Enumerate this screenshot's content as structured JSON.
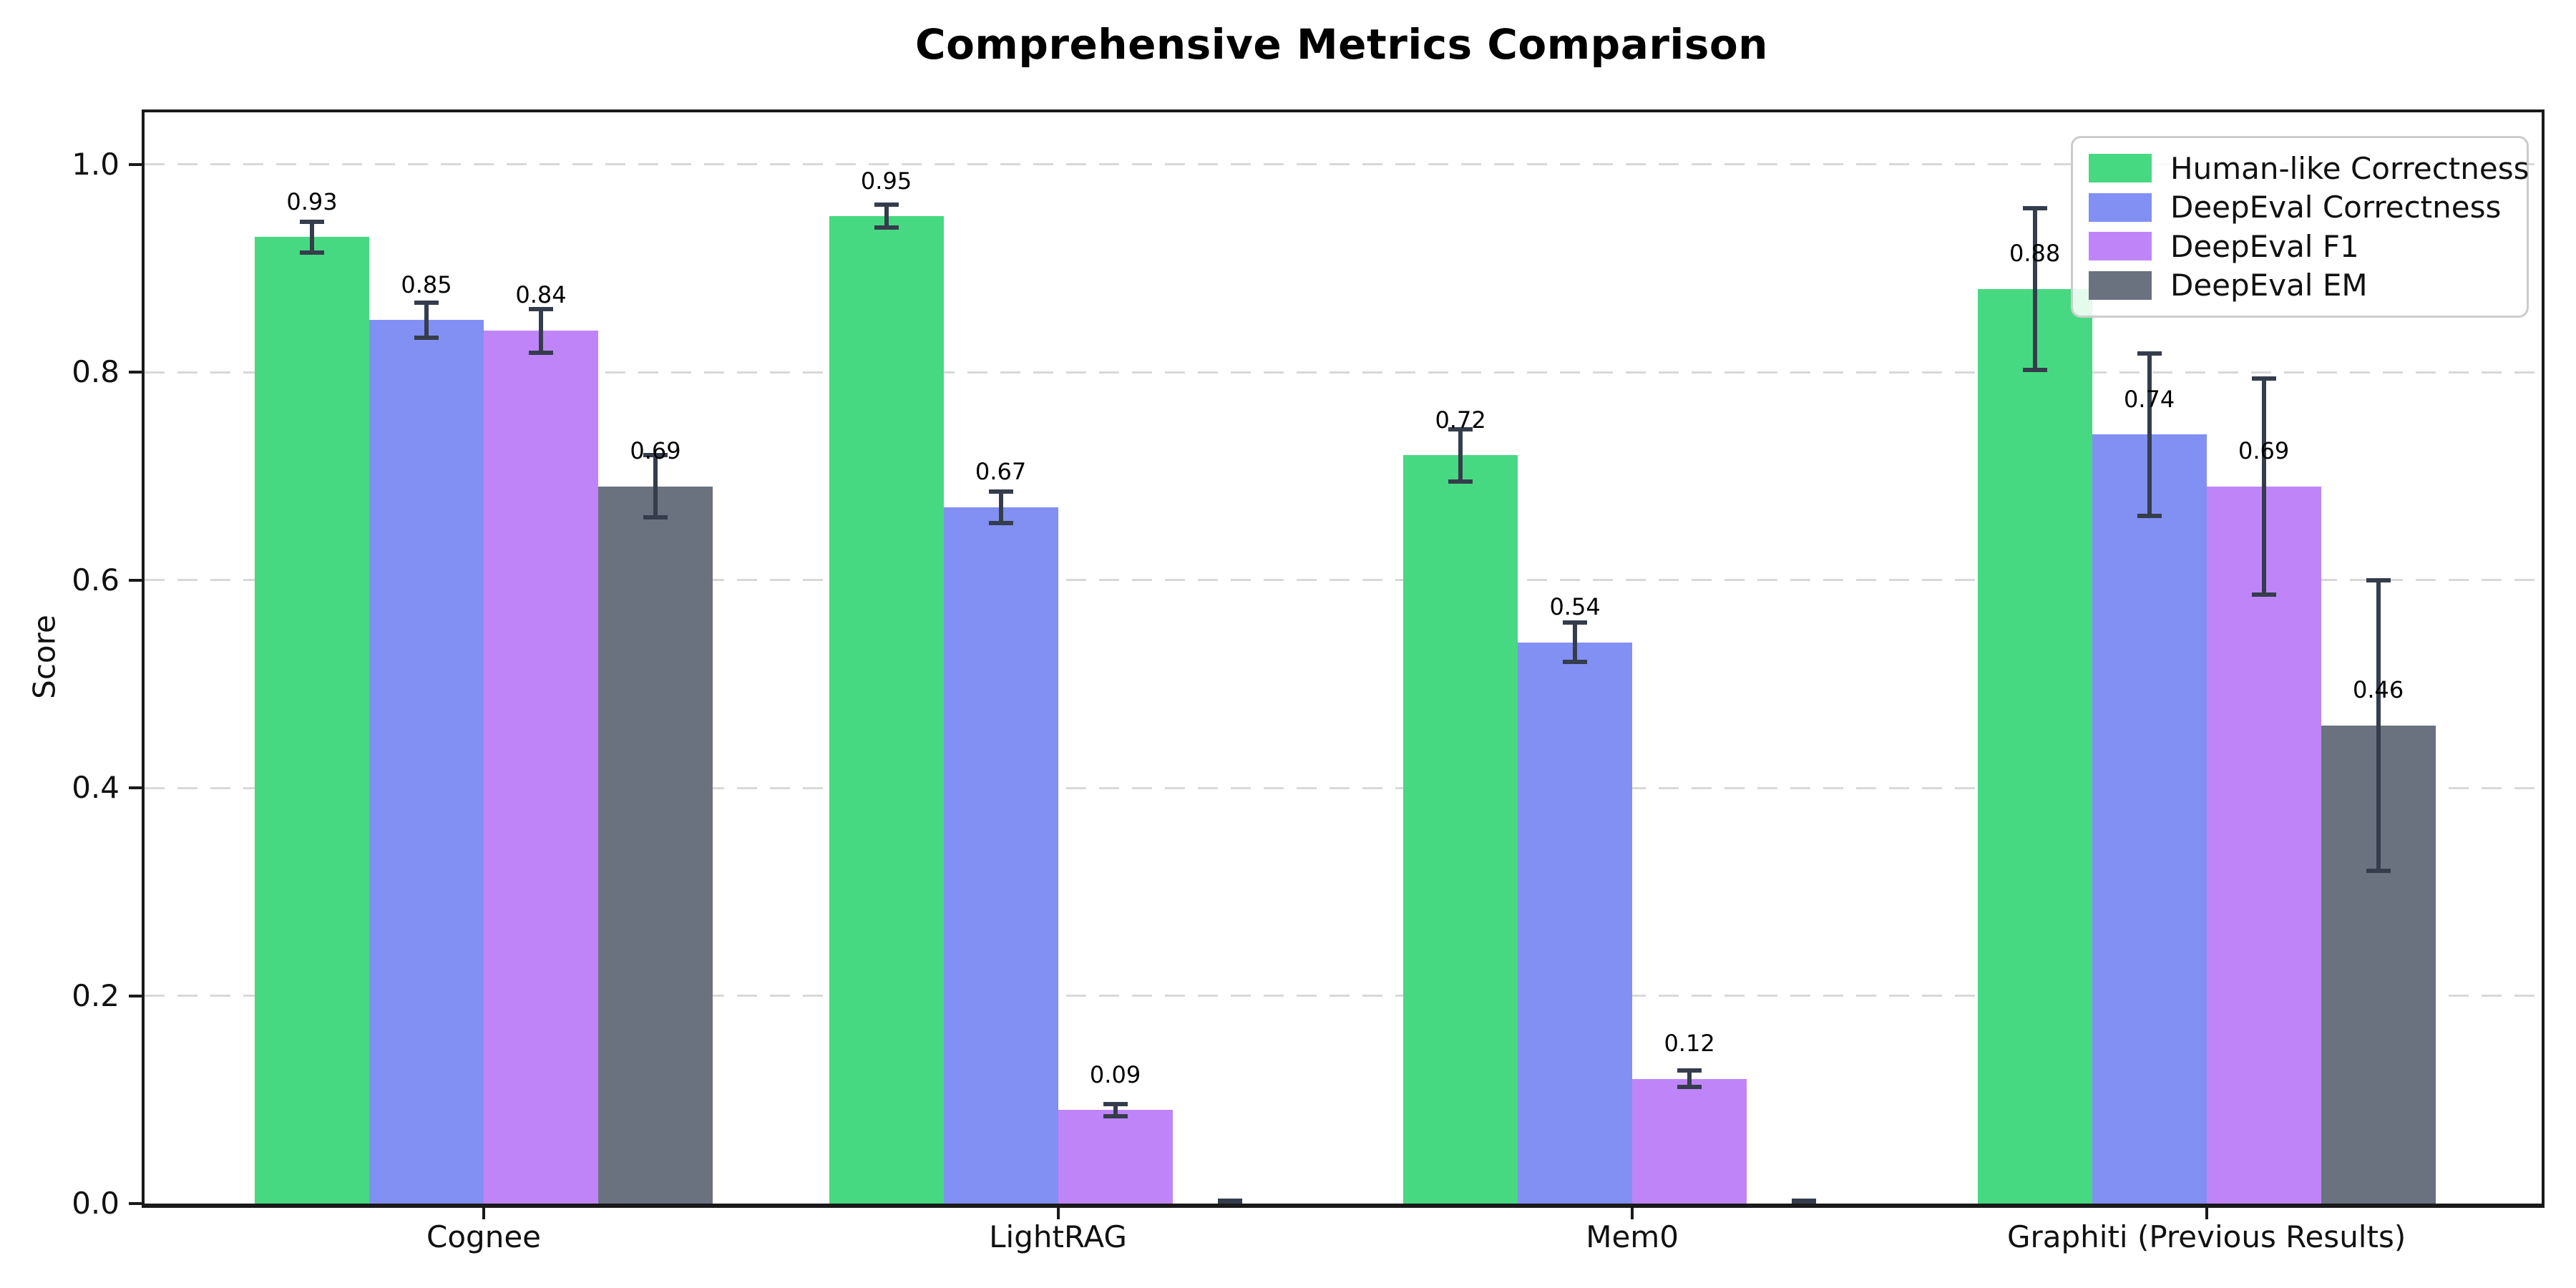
{
  "chart": {
    "title": "Comprehensive Metrics Comparison",
    "ylabel": "Score"
  },
  "chart_data": {
    "type": "bar",
    "title": "Comprehensive Metrics Comparison",
    "xlabel": "",
    "ylabel": "Score",
    "categories": [
      "Cognee",
      "LightRAG",
      "Mem0",
      "Graphiti (Previous Results)"
    ],
    "series": [
      {
        "name": "Human-like Correctness",
        "color": "#47d981",
        "values": [
          0.93,
          0.95,
          0.72,
          0.88
        ],
        "errors": [
          0.015,
          0.011,
          0.025,
          0.078
        ]
      },
      {
        "name": "DeepEval Correctness",
        "color": "#8190f2",
        "values": [
          0.85,
          0.67,
          0.54,
          0.74
        ],
        "errors": [
          0.017,
          0.015,
          0.019,
          0.078
        ]
      },
      {
        "name": "DeepEval F1",
        "color": "#bf85f8",
        "values": [
          0.84,
          0.09,
          0.12,
          0.69
        ],
        "errors": [
          0.021,
          0.006,
          0.008,
          0.104
        ]
      },
      {
        "name": "DeepEval EM",
        "color": "#6a7280",
        "values": [
          0.69,
          0.0,
          0.0,
          0.46
        ],
        "errors": [
          0.03,
          0.0,
          0.0,
          0.14
        ]
      }
    ],
    "bar_value_labels": {
      "format": "2-decimals",
      "shown_for_zero_bars": false
    },
    "ylim": [
      0,
      1.05
    ],
    "yticks": [
      0.0,
      0.2,
      0.4,
      0.6,
      0.8,
      1.0
    ],
    "grid": "horizontal-dashed",
    "legend_position": "upper right",
    "error_bar_color": "#353d4c",
    "grid_color": "#d8d8d8",
    "spine_color": "#1a1a1a"
  }
}
